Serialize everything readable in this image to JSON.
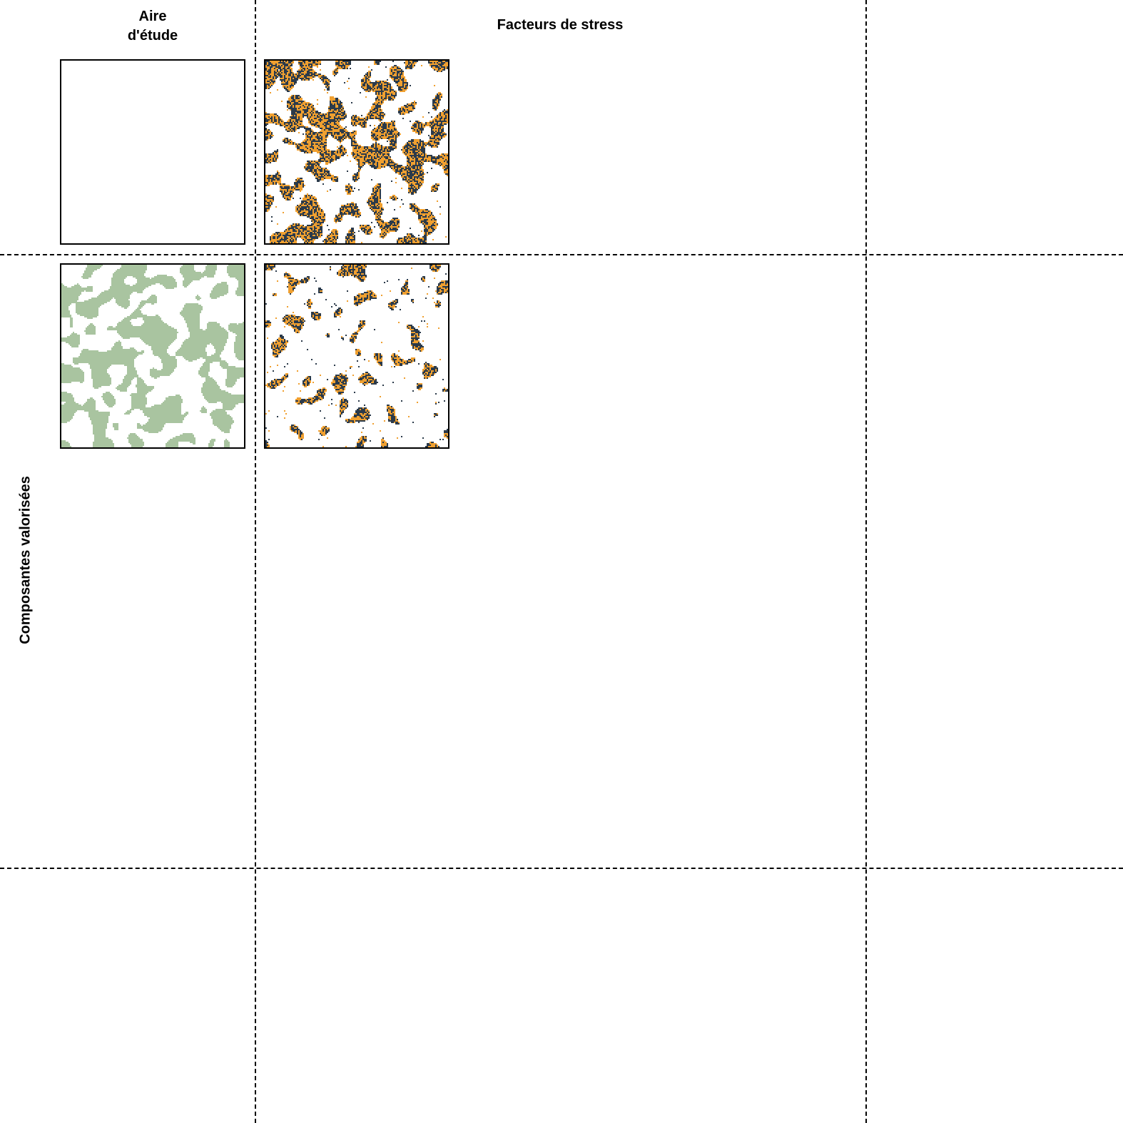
{
  "headers": {
    "aire": "Aire\nd'étude",
    "stress": "Facteurs de stress",
    "composantes": "Composantes valorisées"
  },
  "colors": {
    "stressor_light": "#f0a030",
    "stressor_dark": "#2b3a4a",
    "component": "#a9c4a0",
    "line": "#000000"
  },
  "panels": [
    {
      "id": "study-area",
      "fill": "none"
    },
    {
      "id": "stressor-map",
      "fill": "stressor",
      "density": 0.42
    },
    {
      "id": "component-map",
      "fill": "component",
      "density": 0.45
    },
    {
      "id": "stressor-on-component-map",
      "fill": "stressor",
      "density": 0.14
    }
  ]
}
